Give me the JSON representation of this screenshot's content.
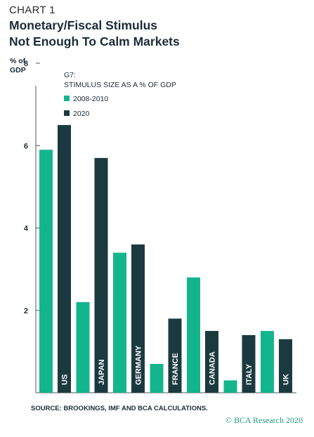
{
  "header": {
    "chart_label": "CHART 1",
    "title_line1": "Monetary/Fiscal Stimulus",
    "title_line2": "Not Enough To Calm Markets"
  },
  "footer": {
    "source": "SOURCE: BROOKINGS, IMF AND BCA CALCULATIONS.",
    "credit": "© BCA Research 2020"
  },
  "colors": {
    "series_2008": "#13b58d",
    "series_2020": "#1b3a40",
    "axis": "#555555"
  },
  "chart_data": {
    "type": "bar",
    "ylabel": "% of\nGDP",
    "ylim": [
      0,
      8
    ],
    "yticks": [
      2,
      4,
      6,
      8
    ],
    "grid": false,
    "legend_title": "G7:\nSTIMULUS SIZE AS A % OF GDP",
    "legend_position": "top-left",
    "categories": [
      "US",
      "JAPAN",
      "GERMANY",
      "FRANCE",
      "CANADA",
      "ITALY",
      "UK"
    ],
    "series": [
      {
        "name": "2008-2010",
        "values": [
          5.9,
          2.2,
          3.4,
          0.7,
          2.8,
          0.3,
          1.5
        ]
      },
      {
        "name": "2020",
        "values": [
          6.5,
          5.7,
          3.6,
          1.8,
          1.5,
          1.4,
          1.3
        ]
      }
    ]
  }
}
